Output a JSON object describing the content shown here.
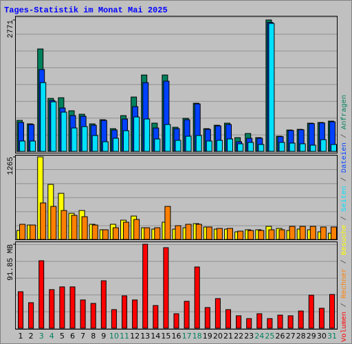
{
  "chart_data": [
    {
      "type": "bar",
      "title": "Tages-Statistik im Monat Mai 2025",
      "ylim": [
        0,
        2771
      ],
      "yticks": [
        2771
      ],
      "series": [
        {
          "name": "Anfragen",
          "color": "#00805c",
          "values": [
            653,
            580,
            2160,
            1117,
            1131,
            856,
            783,
            580,
            667,
            479,
            754,
            1146,
            1610,
            595,
            1610,
            508,
            696,
            1015,
            479,
            551,
            595,
            290,
            377,
            290,
            2771,
            319,
            450,
            464,
            595,
            609,
            638
          ]
        },
        {
          "name": "Dateien",
          "color": "#0040ff",
          "values": [
            609,
            565,
            1726,
            1073,
            914,
            754,
            740,
            551,
            653,
            450,
            682,
            943,
            1450,
            493,
            1480,
            479,
            667,
            1001,
            464,
            537,
            566,
            203,
            276,
            276,
            2720,
            310,
            440,
            455,
            585,
            600,
            624
          ]
        },
        {
          "name": "Seiten",
          "color": "#00e0ff",
          "values": [
            218,
            218,
            1450,
            1044,
            827,
            493,
            522,
            334,
            203,
            276,
            435,
            725,
            682,
            261,
            566,
            232,
            319,
            334,
            218,
            232,
            261,
            160,
            189,
            145,
            2698,
            189,
            174,
            160,
            131,
            247,
            145
          ]
        }
      ]
    },
    {
      "type": "bar",
      "ylim": [
        0,
        1265
      ],
      "yticks": [
        1265
      ],
      "series": [
        {
          "name": "Besuche",
          "color": "#ffff00",
          "values": [
            137,
            221,
            1265,
            843,
            706,
            400,
            443,
            232,
            148,
            232,
            295,
            358,
            179,
            158,
            264,
            158,
            179,
            242,
            190,
            158,
            158,
            116,
            148,
            148,
            200,
            169,
            137,
            158,
            148,
            116,
            95
          ]
        },
        {
          "name": "Rechner",
          "color": "#ff8000",
          "values": [
            232,
            221,
            559,
            506,
            443,
            369,
            348,
            221,
            148,
            179,
            264,
            306,
            179,
            179,
            506,
            211,
            232,
            232,
            190,
            169,
            169,
            127,
            137,
            137,
            148,
            148,
            200,
            200,
            200,
            190,
            190
          ]
        }
      ]
    },
    {
      "type": "bar",
      "ylim": [
        0,
        91.85
      ],
      "yticks": [
        {
          "value": 91.85,
          "label": "91.85 MB"
        }
      ],
      "categories": [
        "1",
        "2",
        "3",
        "4",
        "5",
        "6",
        "7",
        "8",
        "9",
        "10",
        "11",
        "12",
        "13",
        "14",
        "15",
        "16",
        "17",
        "18",
        "19",
        "20",
        "21",
        "22",
        "23",
        "24",
        "25",
        "26",
        "27",
        "28",
        "29",
        "30",
        "31"
      ],
      "category_colors": [
        "#000000",
        "#000000",
        "#00805c",
        "#00805c",
        "#000000",
        "#000000",
        "#000000",
        "#000000",
        "#000000",
        "#00805c",
        "#00805c",
        "#000000",
        "#000000",
        "#000000",
        "#000000",
        "#000000",
        "#00805c",
        "#00805c",
        "#000000",
        "#000000",
        "#000000",
        "#000000",
        "#000000",
        "#00805c",
        "#00805c",
        "#000000",
        "#000000",
        "#000000",
        "#000000",
        "#000000",
        "#00805c"
      ],
      "series": [
        {
          "name": "Volumen",
          "color": "#ff0000",
          "values": [
            39.9,
            27.9,
            73.8,
            42.2,
            45.2,
            45.2,
            30.9,
            27.1,
            51.9,
            20.3,
            35.4,
            30.9,
            91.85,
            24.8,
            88.1,
            15.8,
            29.4,
            67.0,
            22.6,
            32.4,
            20.3,
            13.6,
            10.5,
            15.8,
            10.5,
            14.3,
            13.6,
            18.8,
            36.1,
            21.8,
            36.9
          ]
        }
      ]
    }
  ]
}
